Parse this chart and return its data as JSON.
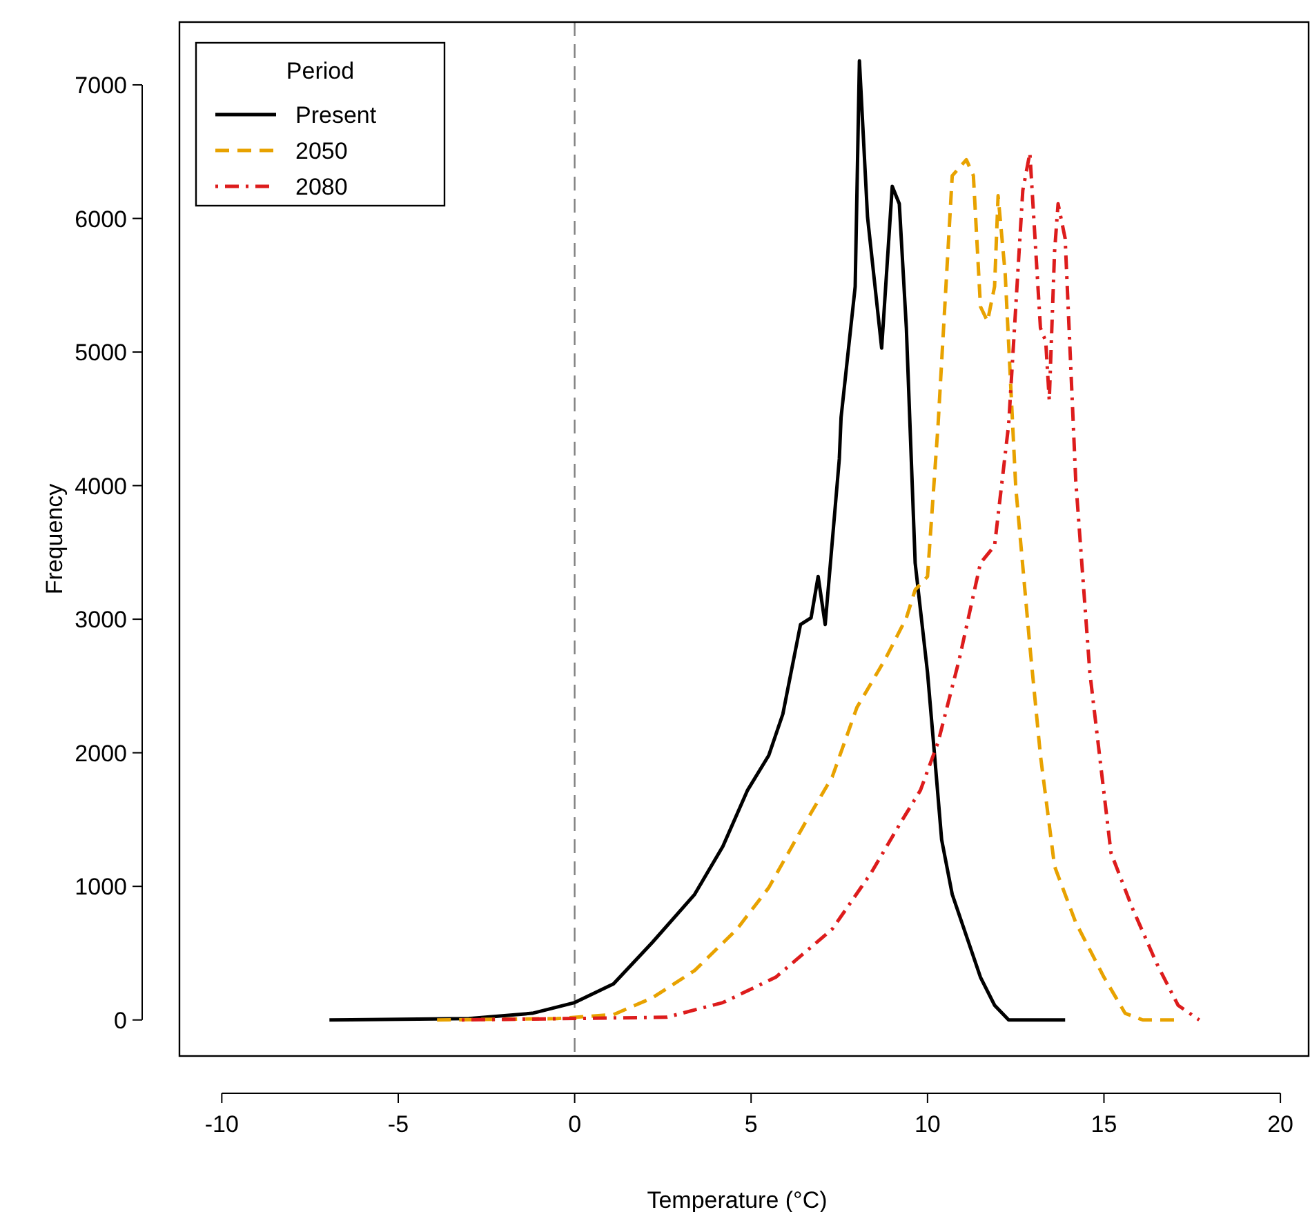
{
  "chart_data": {
    "type": "line",
    "xlabel": "Temperature (°C)",
    "ylabel": "Frequency",
    "legend_title": "Period",
    "legend": "top left",
    "grid": false,
    "marker": "none",
    "xlim": [
      -11.2,
      20.8
    ],
    "ylim": [
      -270,
      7470
    ],
    "xticks": [
      -10,
      -5,
      0,
      5,
      10,
      15,
      20
    ],
    "yticks": [
      0,
      1000,
      2000,
      3000,
      4000,
      5000,
      6000,
      7000
    ],
    "ref_lines": [
      {
        "axis": "x",
        "value": 0,
        "label": null,
        "color": "#808080",
        "line_style": "dashed"
      }
    ],
    "series": [
      {
        "name": "Present",
        "color": "#000000",
        "line_style": "solid",
        "x": [
          -6.95,
          -3,
          -1.2,
          0,
          1.1,
          2.2,
          3.4,
          4.2,
          4.9,
          5.5,
          5.9,
          6.4,
          6.7,
          6.9,
          7.1,
          7.5,
          7.55,
          7.95,
          8.07,
          8.3,
          8.7,
          9.0,
          9.2,
          9.4,
          9.65,
          10.0,
          10.2,
          10.4,
          10.7,
          11.1,
          11.5,
          11.9,
          12.3,
          13.9
        ],
        "values": [
          0,
          10,
          50,
          130,
          270,
          580,
          940,
          1300,
          1720,
          1980,
          2290,
          2960,
          3010,
          3320,
          2960,
          4200,
          4510,
          5490,
          7180,
          6010,
          5030,
          6240,
          6110,
          5180,
          3420,
          2600,
          1980,
          1350,
          940,
          630,
          320,
          110,
          0,
          0
        ]
      },
      {
        "name": "2050",
        "color": "#e8a200",
        "line_style": "dashed",
        "x": [
          -3.9,
          -0.5,
          1.1,
          2.2,
          3.4,
          4.6,
          5.5,
          6.5,
          7.3,
          8.0,
          8.8,
          9.4,
          9.65,
          10.0,
          10.3,
          10.7,
          11.1,
          11.3,
          11.5,
          11.7,
          11.9,
          12.0,
          12.2,
          12.5,
          12.9,
          13.2,
          13.6,
          14.2,
          15.0,
          15.6,
          16.1,
          17.1
        ],
        "values": [
          0,
          10,
          40,
          165,
          370,
          680,
          990,
          1460,
          1820,
          2340,
          2700,
          3010,
          3220,
          3320,
          4460,
          6320,
          6440,
          6320,
          5340,
          5230,
          5490,
          6170,
          5590,
          3990,
          2800,
          1980,
          1150,
          730,
          320,
          50,
          0,
          0
        ]
      },
      {
        "name": "2080",
        "color": "#dd1c1c",
        "line_style": "dashdot",
        "x": [
          -3.2,
          2.6,
          4.2,
          5.7,
          7.3,
          8.4,
          9.2,
          9.8,
          10.3,
          10.9,
          11.5,
          11.9,
          12.3,
          12.7,
          12.9,
          13.2,
          13.35,
          13.45,
          13.6,
          13.7,
          13.9,
          14.2,
          14.6,
          15.2,
          15.8,
          16.5,
          17.1,
          17.7
        ],
        "values": [
          0,
          20,
          130,
          320,
          680,
          1100,
          1460,
          1720,
          2080,
          2700,
          3420,
          3550,
          4460,
          6210,
          6490,
          5180,
          5080,
          4640,
          5750,
          6110,
          5850,
          4040,
          2600,
          1250,
          840,
          420,
          110,
          0
        ]
      }
    ]
  }
}
